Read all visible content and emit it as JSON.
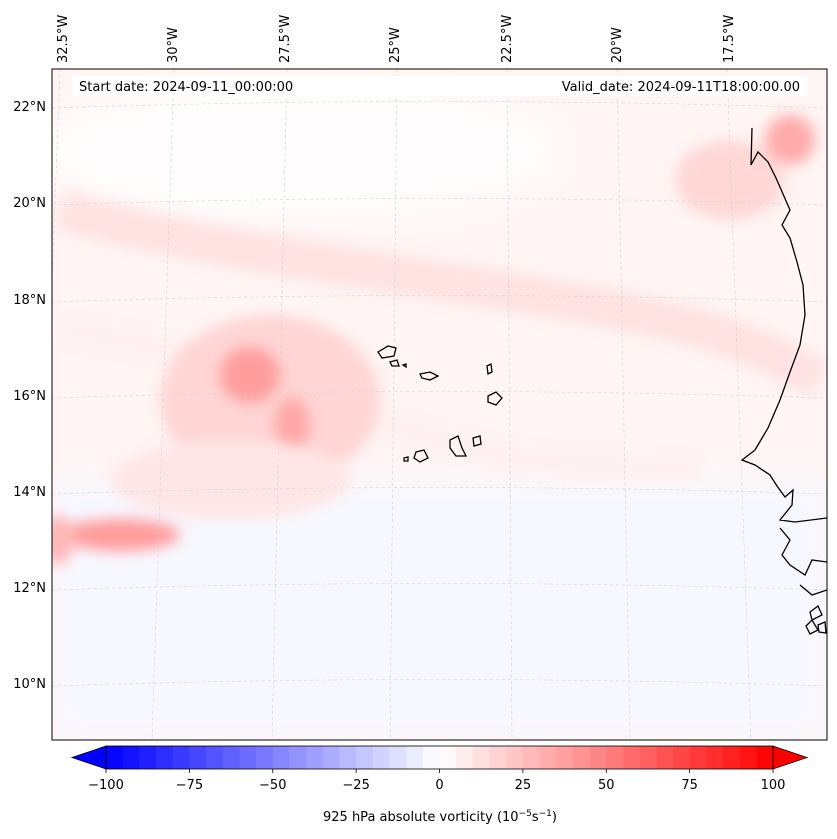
{
  "map": {
    "start_date": "Start date: 2024-09-11_00:00:00",
    "valid_date": "Valid_date: 2024-09-11T18:00:00.00",
    "lon_labels": [
      "32.5°W",
      "30°W",
      "27.5°W",
      "25°W",
      "22.5°W",
      "20°W",
      "17.5°W"
    ],
    "lat_labels": [
      "22°N",
      "20°N",
      "18°N",
      "16°N",
      "14°N",
      "12°N",
      "10°N"
    ],
    "colorbar": {
      "label_main": "925 hPa absolute vorticity (10",
      "exp1": "−5",
      "unit_mid": "s",
      "exp2": "−1",
      "label_end": ")",
      "ticks": [
        "−100",
        "−75",
        "−50",
        "−25",
        "0",
        "25",
        "50",
        "75",
        "100"
      ],
      "vmin": -100,
      "vmax": 100
    },
    "colors": {
      "negative": "#0000ff",
      "neutral": "#ffffff",
      "positive": "#ff0000",
      "coast": "#000000",
      "grid": "#c8c8c8"
    }
  }
}
